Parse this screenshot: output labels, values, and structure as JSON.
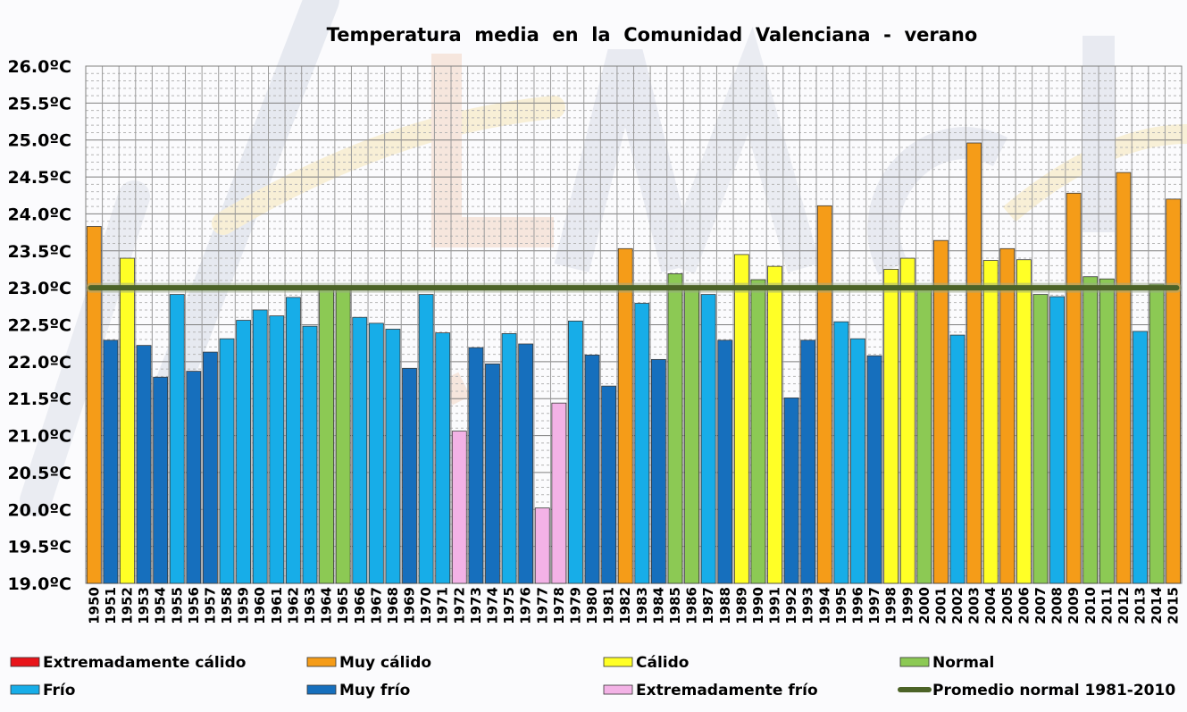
{
  "chart_data": {
    "type": "bar",
    "title": "Temperatura  media  en  la  Comunidad  Valenciana  -  verano",
    "xlabel": "",
    "ylabel": "",
    "ylim": [
      19.0,
      26.0
    ],
    "yticks": [
      "19.0ºC",
      "19.5ºC",
      "20.0ºC",
      "20.5ºC",
      "21.0ºC",
      "21.5ºC",
      "22.0ºC",
      "22.5ºC",
      "23.0ºC",
      "23.5ºC",
      "24.0ºC",
      "24.5ºC",
      "25.0ºC",
      "25.5ºC",
      "26.0ºC"
    ],
    "categories": [
      "1950",
      "1951",
      "1952",
      "1953",
      "1954",
      "1955",
      "1956",
      "1957",
      "1958",
      "1959",
      "1960",
      "1961",
      "1962",
      "1963",
      "1964",
      "1965",
      "1966",
      "1967",
      "1968",
      "1969",
      "1970",
      "1971",
      "1972",
      "1973",
      "1974",
      "1975",
      "1976",
      "1977",
      "1978",
      "1979",
      "1980",
      "1981",
      "1982",
      "1983",
      "1984",
      "1985",
      "1986",
      "1987",
      "1988",
      "1989",
      "1990",
      "1991",
      "1992",
      "1993",
      "1994",
      "1995",
      "1996",
      "1997",
      "1998",
      "1999",
      "2000",
      "2001",
      "2002",
      "2003",
      "2004",
      "2005",
      "2006",
      "2007",
      "2008",
      "2009",
      "2010",
      "2011",
      "2012",
      "2013",
      "2014",
      "2015"
    ],
    "values": [
      23.83,
      22.29,
      23.4,
      22.22,
      21.79,
      22.91,
      21.87,
      22.13,
      22.31,
      22.56,
      22.7,
      22.62,
      22.87,
      22.48,
      23.01,
      23.02,
      22.6,
      22.52,
      22.44,
      21.91,
      22.91,
      22.39,
      21.06,
      22.19,
      21.97,
      22.38,
      22.24,
      20.02,
      21.44,
      22.55,
      22.09,
      21.67,
      23.53,
      22.79,
      22.03,
      23.19,
      23.01,
      22.91,
      22.29,
      23.45,
      23.11,
      23.29,
      21.51,
      22.29,
      24.11,
      22.54,
      22.31,
      22.08,
      23.25,
      23.4,
      23.01,
      23.64,
      22.36,
      24.96,
      23.37,
      23.53,
      23.38,
      22.91,
      22.88,
      24.28,
      23.15,
      23.12,
      24.56,
      22.41,
      23.05,
      24.2
    ],
    "classes": [
      "mc",
      "mf",
      "c",
      "mf",
      "mf",
      "f",
      "mf",
      "mf",
      "f",
      "f",
      "f",
      "f",
      "f",
      "f",
      "n",
      "n",
      "f",
      "f",
      "f",
      "mf",
      "f",
      "f",
      "ef",
      "mf",
      "mf",
      "f",
      "mf",
      "ef",
      "ef",
      "f",
      "mf",
      "mf",
      "mc",
      "f",
      "mf",
      "n",
      "n",
      "f",
      "mf",
      "c",
      "n",
      "c",
      "mf",
      "mf",
      "mc",
      "f",
      "f",
      "mf",
      "c",
      "c",
      "n",
      "mc",
      "f",
      "mc",
      "c",
      "mc",
      "c",
      "n",
      "f",
      "mc",
      "n",
      "n",
      "mc",
      "f",
      "n",
      "mc"
    ],
    "reference_line": {
      "label": "Promedio normal 1981-2010",
      "value": 23.0
    },
    "legend": [
      {
        "key": "ec",
        "label": "Extremadamente cálido",
        "color": "#e8141a"
      },
      {
        "key": "mc",
        "label": "Muy cálido",
        "color": "#f59c18"
      },
      {
        "key": "c",
        "label": "Cálido",
        "color": "#ffff26"
      },
      {
        "key": "n",
        "label": "Normal",
        "color": "#8cc954"
      },
      {
        "key": "f",
        "label": "Frío",
        "color": "#17ade8"
      },
      {
        "key": "mf",
        "label": "Muy frío",
        "color": "#166fbd"
      },
      {
        "key": "ef",
        "label": "Extremadamente frío",
        "color": "#f3b2e6"
      },
      {
        "key": "line",
        "label": "Promedio normal 1981-2010",
        "color": "#4c6327"
      }
    ]
  }
}
